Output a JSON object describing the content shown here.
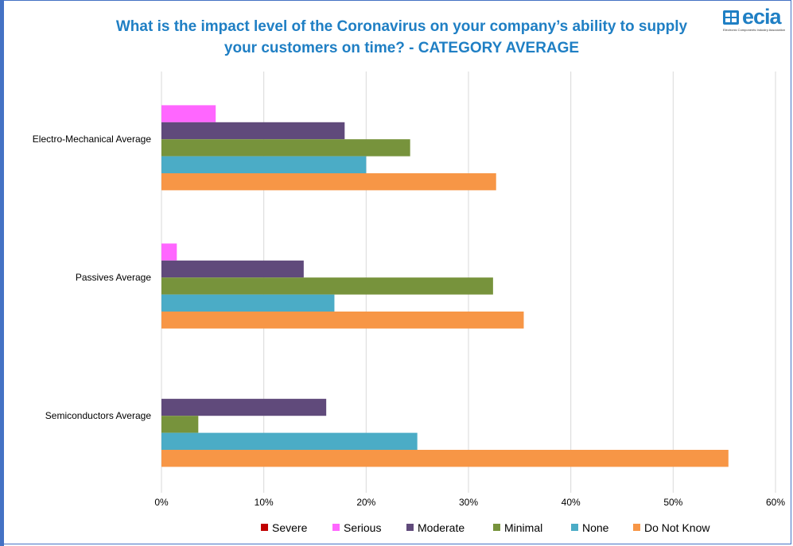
{
  "header": {
    "title_line1": "What is the impact level of the Coronavirus on your company’s ability to supply",
    "title_line2": "your customers on time? - CATEGORY  AVERAGE",
    "logo_word": "ecia",
    "logo_tagline": "Electronic Components Industry Association",
    "logo_icon": "ecia-logo-icon"
  },
  "chart_data": {
    "type": "bar",
    "orientation": "horizontal",
    "categories": [
      "Electro-Mechanical Average",
      "Passives Average",
      "Semiconductors Average"
    ],
    "series": [
      {
        "name": "Severe",
        "color": "#c00000",
        "values": [
          0,
          0,
          0
        ]
      },
      {
        "name": "Serious",
        "color": "#ff66ff",
        "values": [
          5.3,
          1.5,
          0
        ]
      },
      {
        "name": "Moderate",
        "color": "#604a7b",
        "values": [
          17.9,
          13.9,
          16.1
        ]
      },
      {
        "name": "Minimal",
        "color": "#77933c",
        "values": [
          24.3,
          32.4,
          3.6
        ]
      },
      {
        "name": "None",
        "color": "#4bacc6",
        "values": [
          20.0,
          16.9,
          25.0
        ]
      },
      {
        "name": "Do Not Know",
        "color": "#f79646",
        "values": [
          32.7,
          35.4,
          55.4
        ]
      }
    ],
    "x_ticks": [
      "0%",
      "10%",
      "20%",
      "30%",
      "40%",
      "50%",
      "60%"
    ],
    "xlim": [
      0,
      60
    ],
    "grid": true,
    "legend_position": "bottom",
    "title": "What is the impact level of the Coronavirus on your company’s ability to supply your customers on time? - CATEGORY  AVERAGE",
    "xlabel": "",
    "ylabel": ""
  }
}
